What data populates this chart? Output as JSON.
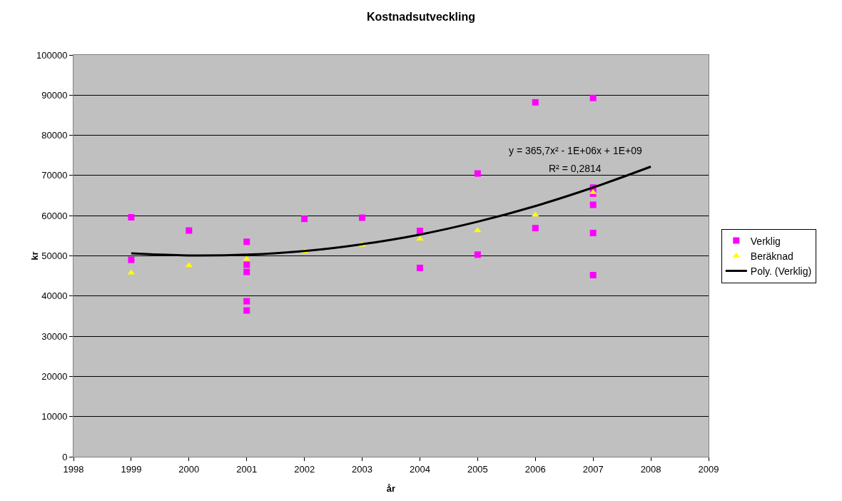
{
  "chart_data": {
    "type": "scatter",
    "title": "Kostnadsutveckling",
    "xlabel": "år",
    "ylabel": "kr",
    "series": [
      {
        "name": "Verklig",
        "color": "#ff00ff",
        "marker": "square",
        "x": [
          1999,
          1999,
          2000,
          2001,
          2001,
          2001,
          2001,
          2001,
          2002,
          2003,
          2004,
          2004,
          2005,
          2005,
          2006,
          2006,
          2007,
          2007,
          2007,
          2007,
          2007,
          2007
        ],
        "values": [
          59600,
          49000,
          56300,
          53500,
          47800,
          46000,
          38700,
          36400,
          59200,
          59500,
          56200,
          47000,
          70500,
          50300,
          88200,
          56900,
          89300,
          67000,
          65500,
          62700,
          55700,
          45200
        ]
      },
      {
        "name": "Beräknad",
        "color": "#ffff00",
        "marker": "triangle",
        "x": [
          1999,
          2000,
          2001,
          2002,
          2003,
          2004,
          2005,
          2006,
          2007
        ],
        "values": [
          45800,
          47600,
          49200,
          51000,
          52700,
          54200,
          56300,
          60200,
          65800
        ]
      },
      {
        "name": "Poly. (Verklig)",
        "color": "#000000",
        "type": "line",
        "marker": "none",
        "line_style": "solid",
        "x": [
          1999,
          2000,
          2001,
          2002,
          2003,
          2004,
          2005,
          2006,
          2007,
          2008
        ],
        "values": [
          50600,
          50100,
          50300,
          51200,
          52900,
          55300,
          58500,
          62400,
          67000,
          72200
        ]
      }
    ],
    "annotations": [
      "y = 365,7x² - 1E+06x + 1E+09",
      "R² = 0,2814"
    ],
    "xlim": [
      1998,
      2009
    ],
    "xticks": [
      1998,
      1999,
      2000,
      2001,
      2002,
      2003,
      2004,
      2005,
      2006,
      2007,
      2008,
      2009
    ],
    "ylim": [
      0,
      100000
    ],
    "yticks": [
      0,
      10000,
      20000,
      30000,
      40000,
      50000,
      60000,
      70000,
      80000,
      90000,
      100000
    ],
    "grid": "y",
    "legend": "right"
  }
}
